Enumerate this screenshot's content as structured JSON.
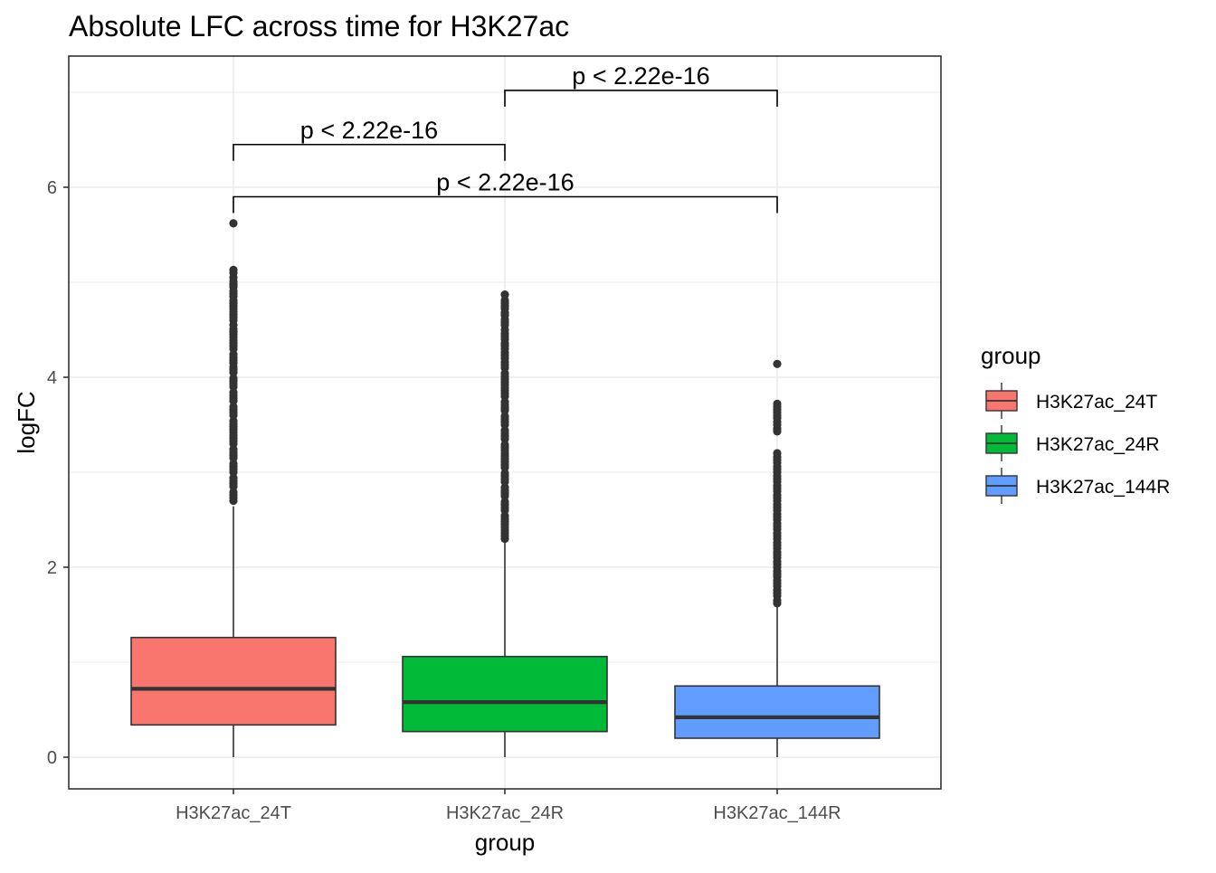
{
  "chart_data": {
    "type": "box",
    "title": "Absolute LFC across time for H3K27ac",
    "xlabel": "group",
    "ylabel": "logFC",
    "ylim": [
      -0.33,
      7.3
    ],
    "yticks": [
      0,
      2,
      4,
      6
    ],
    "ytick_labels": [
      "0",
      "2",
      "4",
      "6"
    ],
    "grid": true,
    "categories": [
      "H3K27ac_24T",
      "H3K27ac_24R",
      "H3K27ac_144R"
    ],
    "series": [
      {
        "category": "H3K27ac_24T",
        "color": "#F8766D",
        "whisker_low": 0.0,
        "q1": 0.34,
        "median": 0.72,
        "q3": 1.26,
        "whisker_high": 2.64,
        "outliers": [
          2.7,
          2.85,
          3.0,
          3.15,
          3.3,
          3.45,
          3.6,
          3.75,
          3.9,
          4.05,
          4.15,
          4.3,
          4.45,
          4.55,
          4.6,
          4.75,
          4.85,
          4.95,
          5.05,
          5.1,
          5.13,
          5.62
        ]
      },
      {
        "category": "H3K27ac_24R",
        "color": "#00BA38",
        "whisker_low": 0.0,
        "q1": 0.27,
        "median": 0.58,
        "q3": 1.06,
        "whisker_high": 2.26,
        "outliers": [
          2.3,
          2.45,
          2.6,
          2.75,
          2.9,
          3.05,
          3.2,
          3.35,
          3.5,
          3.65,
          3.8,
          3.95,
          4.1,
          4.2,
          4.3,
          4.4,
          4.5,
          4.55,
          4.65,
          4.72,
          4.78,
          4.87
        ]
      },
      {
        "category": "H3K27ac_144R",
        "color": "#619CFF",
        "whisker_low": 0.0,
        "q1": 0.2,
        "median": 0.42,
        "q3": 0.75,
        "whisker_high": 1.6,
        "outliers": [
          1.62,
          1.7,
          1.8,
          1.9,
          2.0,
          2.1,
          2.2,
          2.3,
          2.4,
          2.5,
          2.6,
          2.7,
          2.8,
          2.9,
          3.0,
          3.1,
          3.2,
          3.43,
          3.5,
          3.57,
          3.72,
          4.14
        ]
      }
    ],
    "comparisons": [
      {
        "from": 0,
        "to": 1,
        "label": "p < 2.22e-16",
        "y": 6.45
      },
      {
        "from": 1,
        "to": 2,
        "label": "p < 2.22e-16",
        "y": 7.02
      },
      {
        "from": 0,
        "to": 2,
        "label": "p < 2.22e-16",
        "y": 5.9
      }
    ],
    "legend": {
      "title": "group",
      "position": "right",
      "items": [
        "H3K27ac_24T",
        "H3K27ac_24R",
        "H3K27ac_144R"
      ]
    }
  }
}
